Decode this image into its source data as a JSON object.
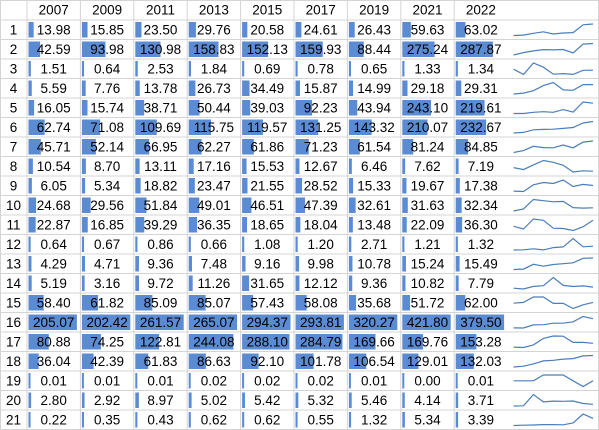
{
  "table": {
    "header": [
      "2007",
      "2009",
      "2011",
      "2013",
      "2015",
      "2017",
      "2019",
      "2021",
      "2022"
    ],
    "row_labels": [
      1,
      2,
      3,
      4,
      5,
      6,
      7,
      8,
      9,
      10,
      11,
      12,
      13,
      14,
      15,
      16,
      17,
      18,
      19,
      20,
      21
    ],
    "rows": [
      [
        "13.98",
        "15.85",
        "23.50",
        "29.76",
        "20.58",
        "24.61",
        "26.43",
        "59.63",
        "63.02"
      ],
      [
        "42.59",
        "93.98",
        "130.98",
        "158.83",
        "152.13",
        "159.93",
        "88.44",
        "275.24",
        "287.87"
      ],
      [
        "1.51",
        "0.64",
        "2.53",
        "1.84",
        "0.69",
        "0.78",
        "0.65",
        "1.33",
        "1.34"
      ],
      [
        "5.59",
        "7.76",
        "13.78",
        "26.73",
        "34.49",
        "15.87",
        "14.99",
        "29.18",
        "29.31"
      ],
      [
        "16.05",
        "15.74",
        "38.71",
        "50.44",
        "39.03",
        "92.23",
        "43.94",
        "243.10",
        "219.61"
      ],
      [
        "62.74",
        "71.08",
        "109.69",
        "115.75",
        "119.57",
        "131.25",
        "143.32",
        "210.07",
        "232.67"
      ],
      [
        "45.71",
        "52.14",
        "66.95",
        "62.27",
        "61.86",
        "71.23",
        "61.54",
        "81.24",
        "84.85"
      ],
      [
        "10.54",
        "8.70",
        "13.11",
        "17.16",
        "15.53",
        "12.67",
        "6.46",
        "7.62",
        "7.19"
      ],
      [
        "6.05",
        "5.34",
        "18.82",
        "23.47",
        "21.55",
        "28.52",
        "15.33",
        "19.67",
        "17.38"
      ],
      [
        "24.68",
        "29.56",
        "51.84",
        "49.01",
        "46.51",
        "47.39",
        "32.61",
        "31.63",
        "32.34"
      ],
      [
        "22.87",
        "16.85",
        "39.29",
        "36.35",
        "18.65",
        "18.04",
        "13.48",
        "22.09",
        "36.30"
      ],
      [
        "0.64",
        "0.67",
        "0.86",
        "0.66",
        "1.08",
        "1.20",
        "2.71",
        "1.21",
        "1.32"
      ],
      [
        "4.29",
        "4.71",
        "9.36",
        "7.48",
        "9.16",
        "9.98",
        "10.78",
        "15.24",
        "15.49"
      ],
      [
        "5.19",
        "3.16",
        "9.72",
        "11.26",
        "31.65",
        "12.12",
        "9.36",
        "10.82",
        "7.79"
      ],
      [
        "58.40",
        "61.82",
        "85.09",
        "85.07",
        "57.43",
        "58.08",
        "35.68",
        "51.72",
        "62.00"
      ],
      [
        "205.07",
        "202.42",
        "261.57",
        "265.07",
        "294.37",
        "293.81",
        "320.27",
        "421.80",
        "379.50"
      ],
      [
        "80.88",
        "74.25",
        "122.81",
        "244.08",
        "288.10",
        "284.79",
        "169.66",
        "169.76",
        "153.28"
      ],
      [
        "36.04",
        "42.39",
        "61.83",
        "86.63",
        "92.10",
        "101.78",
        "106.54",
        "129.01",
        "132.03"
      ],
      [
        "0.01",
        "0.01",
        "0.01",
        "0.02",
        "0.02",
        "0.02",
        "0.01",
        "0.00",
        "0.01"
      ],
      [
        "2.80",
        "2.92",
        "8.97",
        "5.02",
        "5.42",
        "5.32",
        "5.46",
        "4.14",
        "3.71"
      ],
      [
        "0.22",
        "0.35",
        "0.43",
        "0.62",
        "0.62",
        "0.55",
        "1.32",
        "5.34",
        "3.39"
      ]
    ]
  }
}
